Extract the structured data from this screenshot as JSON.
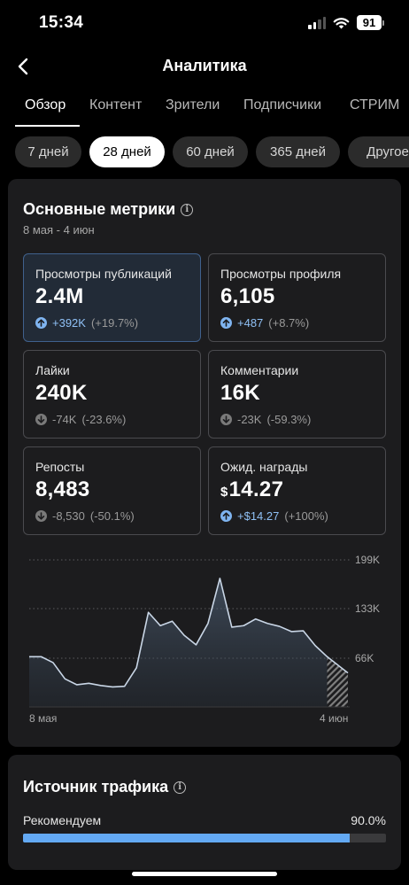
{
  "status_bar": {
    "time": "15:34",
    "battery": "91"
  },
  "header": {
    "title": "Аналитика"
  },
  "tabs": [
    {
      "label": "Обзор",
      "active": true
    },
    {
      "label": "Контент"
    },
    {
      "label": "Зрители"
    },
    {
      "label": "Подписчики"
    },
    {
      "label": "СТРИМ"
    }
  ],
  "date_ranges": [
    {
      "label": "7 дней"
    },
    {
      "label": "28 дней",
      "active": true
    },
    {
      "label": "60 дней"
    },
    {
      "label": "365 дней"
    },
    {
      "label": "Другое"
    }
  ],
  "key_metrics": {
    "title": "Основные метрики",
    "period": "8 мая - 4 июн",
    "items": [
      {
        "label": "Просмотры публикаций",
        "value": "2.4M",
        "change_abs": "+392K",
        "change_pct": "(+19.7%)",
        "direction": "up",
        "selected": true
      },
      {
        "label": "Просмотры профиля",
        "value": "6,105",
        "change_abs": "+487",
        "change_pct": "(+8.7%)",
        "direction": "up"
      },
      {
        "label": "Лайки",
        "value": "240K",
        "change_abs": "-74K",
        "change_pct": "(-23.6%)",
        "direction": "down"
      },
      {
        "label": "Комментарии",
        "value": "16K",
        "change_abs": "-23K",
        "change_pct": "(-59.3%)",
        "direction": "down"
      },
      {
        "label": "Репосты",
        "value": "8,483",
        "change_abs": "-8,530",
        "change_pct": "(-50.1%)",
        "direction": "down"
      },
      {
        "label": "Ожид. награды",
        "currency": "$",
        "value": "14.27",
        "change_abs": "+$14.27",
        "change_pct": "(+100%)",
        "direction": "up"
      }
    ]
  },
  "chart_data": {
    "type": "area",
    "x_start_label": "8 мая",
    "x_end_label": "4 июн",
    "y_ticks": [
      "199K",
      "133K",
      "66K"
    ],
    "y_tick_values": [
      199,
      133,
      66
    ],
    "ylim": [
      0,
      199
    ],
    "grid": true,
    "values": [
      68,
      68,
      60,
      38,
      30,
      32,
      29,
      27,
      28,
      53,
      128,
      110,
      116,
      97,
      84,
      113,
      174,
      108,
      110,
      119,
      113,
      109,
      102,
      103,
      83,
      68,
      46
    ],
    "projected_last": 46,
    "accent_color": "#c9d6e6"
  },
  "traffic_source": {
    "title": "Источник трафика",
    "items": [
      {
        "label": "Рекомендуем",
        "value": "90.0%",
        "fraction": 0.9
      }
    ],
    "accent_color": "#63a9f4"
  }
}
